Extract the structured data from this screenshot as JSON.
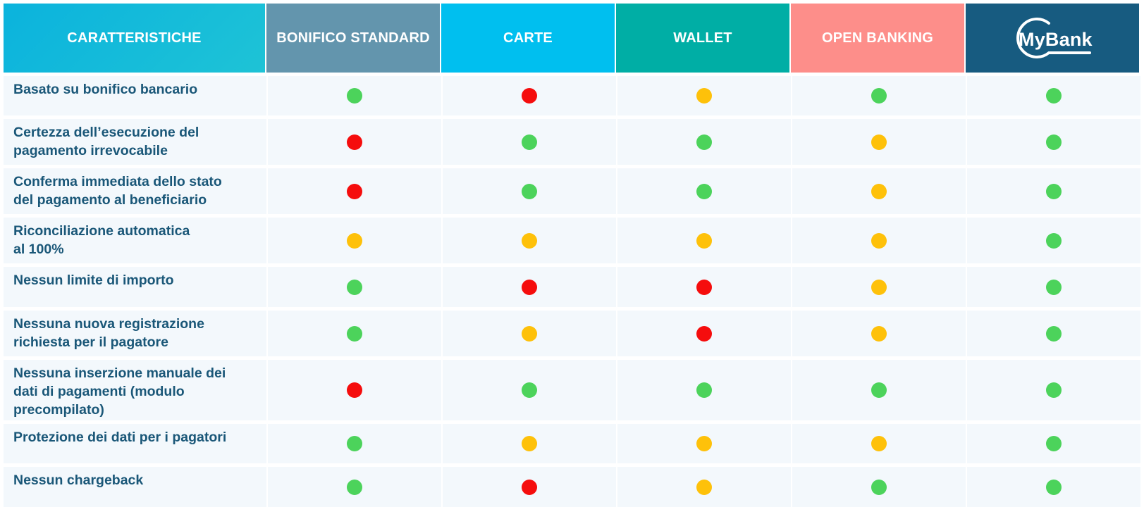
{
  "colors": {
    "green": "#4cd35b",
    "red": "#f50d0d",
    "yellow": "#fec10a"
  },
  "headers": [
    {
      "label": "CARATTERISTICHE",
      "name": "header-caratteristiche"
    },
    {
      "label": "BONIFICO STANDARD",
      "name": "header-bonifico-standard"
    },
    {
      "label": "CARTE",
      "name": "header-carte"
    },
    {
      "label": "WALLET",
      "name": "header-wallet"
    },
    {
      "label": "OPEN BANKING",
      "name": "header-open-banking"
    },
    {
      "label": "MyBank",
      "name": "header-mybank-logo",
      "logo": true
    }
  ],
  "rows": [
    {
      "label": "Basato su bonifico bancario",
      "status": [
        "green",
        "red",
        "yellow",
        "green",
        "green"
      ]
    },
    {
      "label": "Certezza dell’esecuzione del\npagamento irrevocabile",
      "status": [
        "red",
        "green",
        "green",
        "yellow",
        "green"
      ]
    },
    {
      "label": "Conferma immediata dello stato\ndel pagamento al beneficiario",
      "status": [
        "red",
        "green",
        "green",
        "yellow",
        "green"
      ]
    },
    {
      "label": "Riconciliazione automatica\nal  100%",
      "status": [
        "yellow",
        "yellow",
        "yellow",
        "yellow",
        "green"
      ]
    },
    {
      "label": "Nessun limite di importo",
      "status": [
        "green",
        "red",
        "red",
        "yellow",
        "green"
      ]
    },
    {
      "label": "Nessuna nuova registrazione\nrichiesta per il pagatore",
      "status": [
        "green",
        "yellow",
        "red",
        "yellow",
        "green"
      ]
    },
    {
      "label": "Nessuna inserzione manuale dei\ndati di  pagamenti (modulo\nprecompilato)",
      "status": [
        "red",
        "green",
        "green",
        "green",
        "green"
      ]
    },
    {
      "label": "Protezione dei dati per i pagatori",
      "status": [
        "green",
        "yellow",
        "yellow",
        "yellow",
        "green"
      ]
    },
    {
      "label": "Nessun chargeback",
      "status": [
        "green",
        "red",
        "yellow",
        "green",
        "green"
      ]
    }
  ]
}
